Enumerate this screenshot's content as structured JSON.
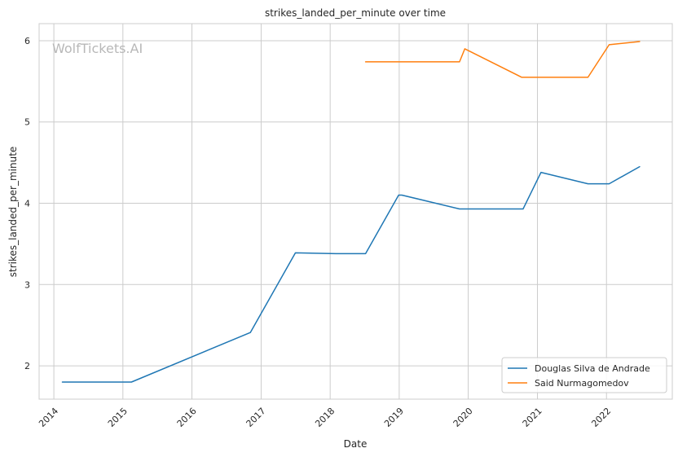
{
  "chart_data": {
    "type": "line",
    "title": "strikes_landed_per_minute over time",
    "xlabel": "Date",
    "ylabel": "strikes_landed_per_minute",
    "watermark": "WolfTickets.AI",
    "x_ticks": [
      "2014",
      "2015",
      "2016",
      "2017",
      "2018",
      "2019",
      "2020",
      "2021",
      "2022"
    ],
    "y_ticks": [
      2,
      3,
      4,
      5,
      6
    ],
    "xlim": [
      "2013-10-15",
      "2022-12-15"
    ],
    "ylim": [
      1.59,
      6.21
    ],
    "grid": true,
    "legend_position": "bottom-right",
    "series": [
      {
        "name": "Douglas Silva de Andrade",
        "color": "#1f77b4",
        "points": [
          {
            "date": "2014-02-15",
            "value": 1.8
          },
          {
            "date": "2015-02-15",
            "value": 1.8
          },
          {
            "date": "2016-11-05",
            "value": 2.41
          },
          {
            "date": "2017-07-01",
            "value": 3.39
          },
          {
            "date": "2018-02-01",
            "value": 3.38
          },
          {
            "date": "2018-07-07",
            "value": 3.38
          },
          {
            "date": "2018-12-29",
            "value": 4.1
          },
          {
            "date": "2019-01-15",
            "value": 4.1
          },
          {
            "date": "2019-11-16",
            "value": 3.93
          },
          {
            "date": "2020-10-17",
            "value": 3.93
          },
          {
            "date": "2021-01-20",
            "value": 4.38
          },
          {
            "date": "2021-09-25",
            "value": 4.24
          },
          {
            "date": "2022-01-15",
            "value": 4.24
          },
          {
            "date": "2022-06-25",
            "value": 4.45
          }
        ]
      },
      {
        "name": "Said Nurmagomedov",
        "color": "#ff7f0e",
        "points": [
          {
            "date": "2018-07-07",
            "value": 5.74
          },
          {
            "date": "2019-11-16",
            "value": 5.74
          },
          {
            "date": "2019-12-14",
            "value": 5.9
          },
          {
            "date": "2020-10-10",
            "value": 5.55
          },
          {
            "date": "2021-09-25",
            "value": 5.55
          },
          {
            "date": "2022-01-15",
            "value": 5.95
          },
          {
            "date": "2022-06-25",
            "value": 5.99
          }
        ]
      }
    ]
  }
}
